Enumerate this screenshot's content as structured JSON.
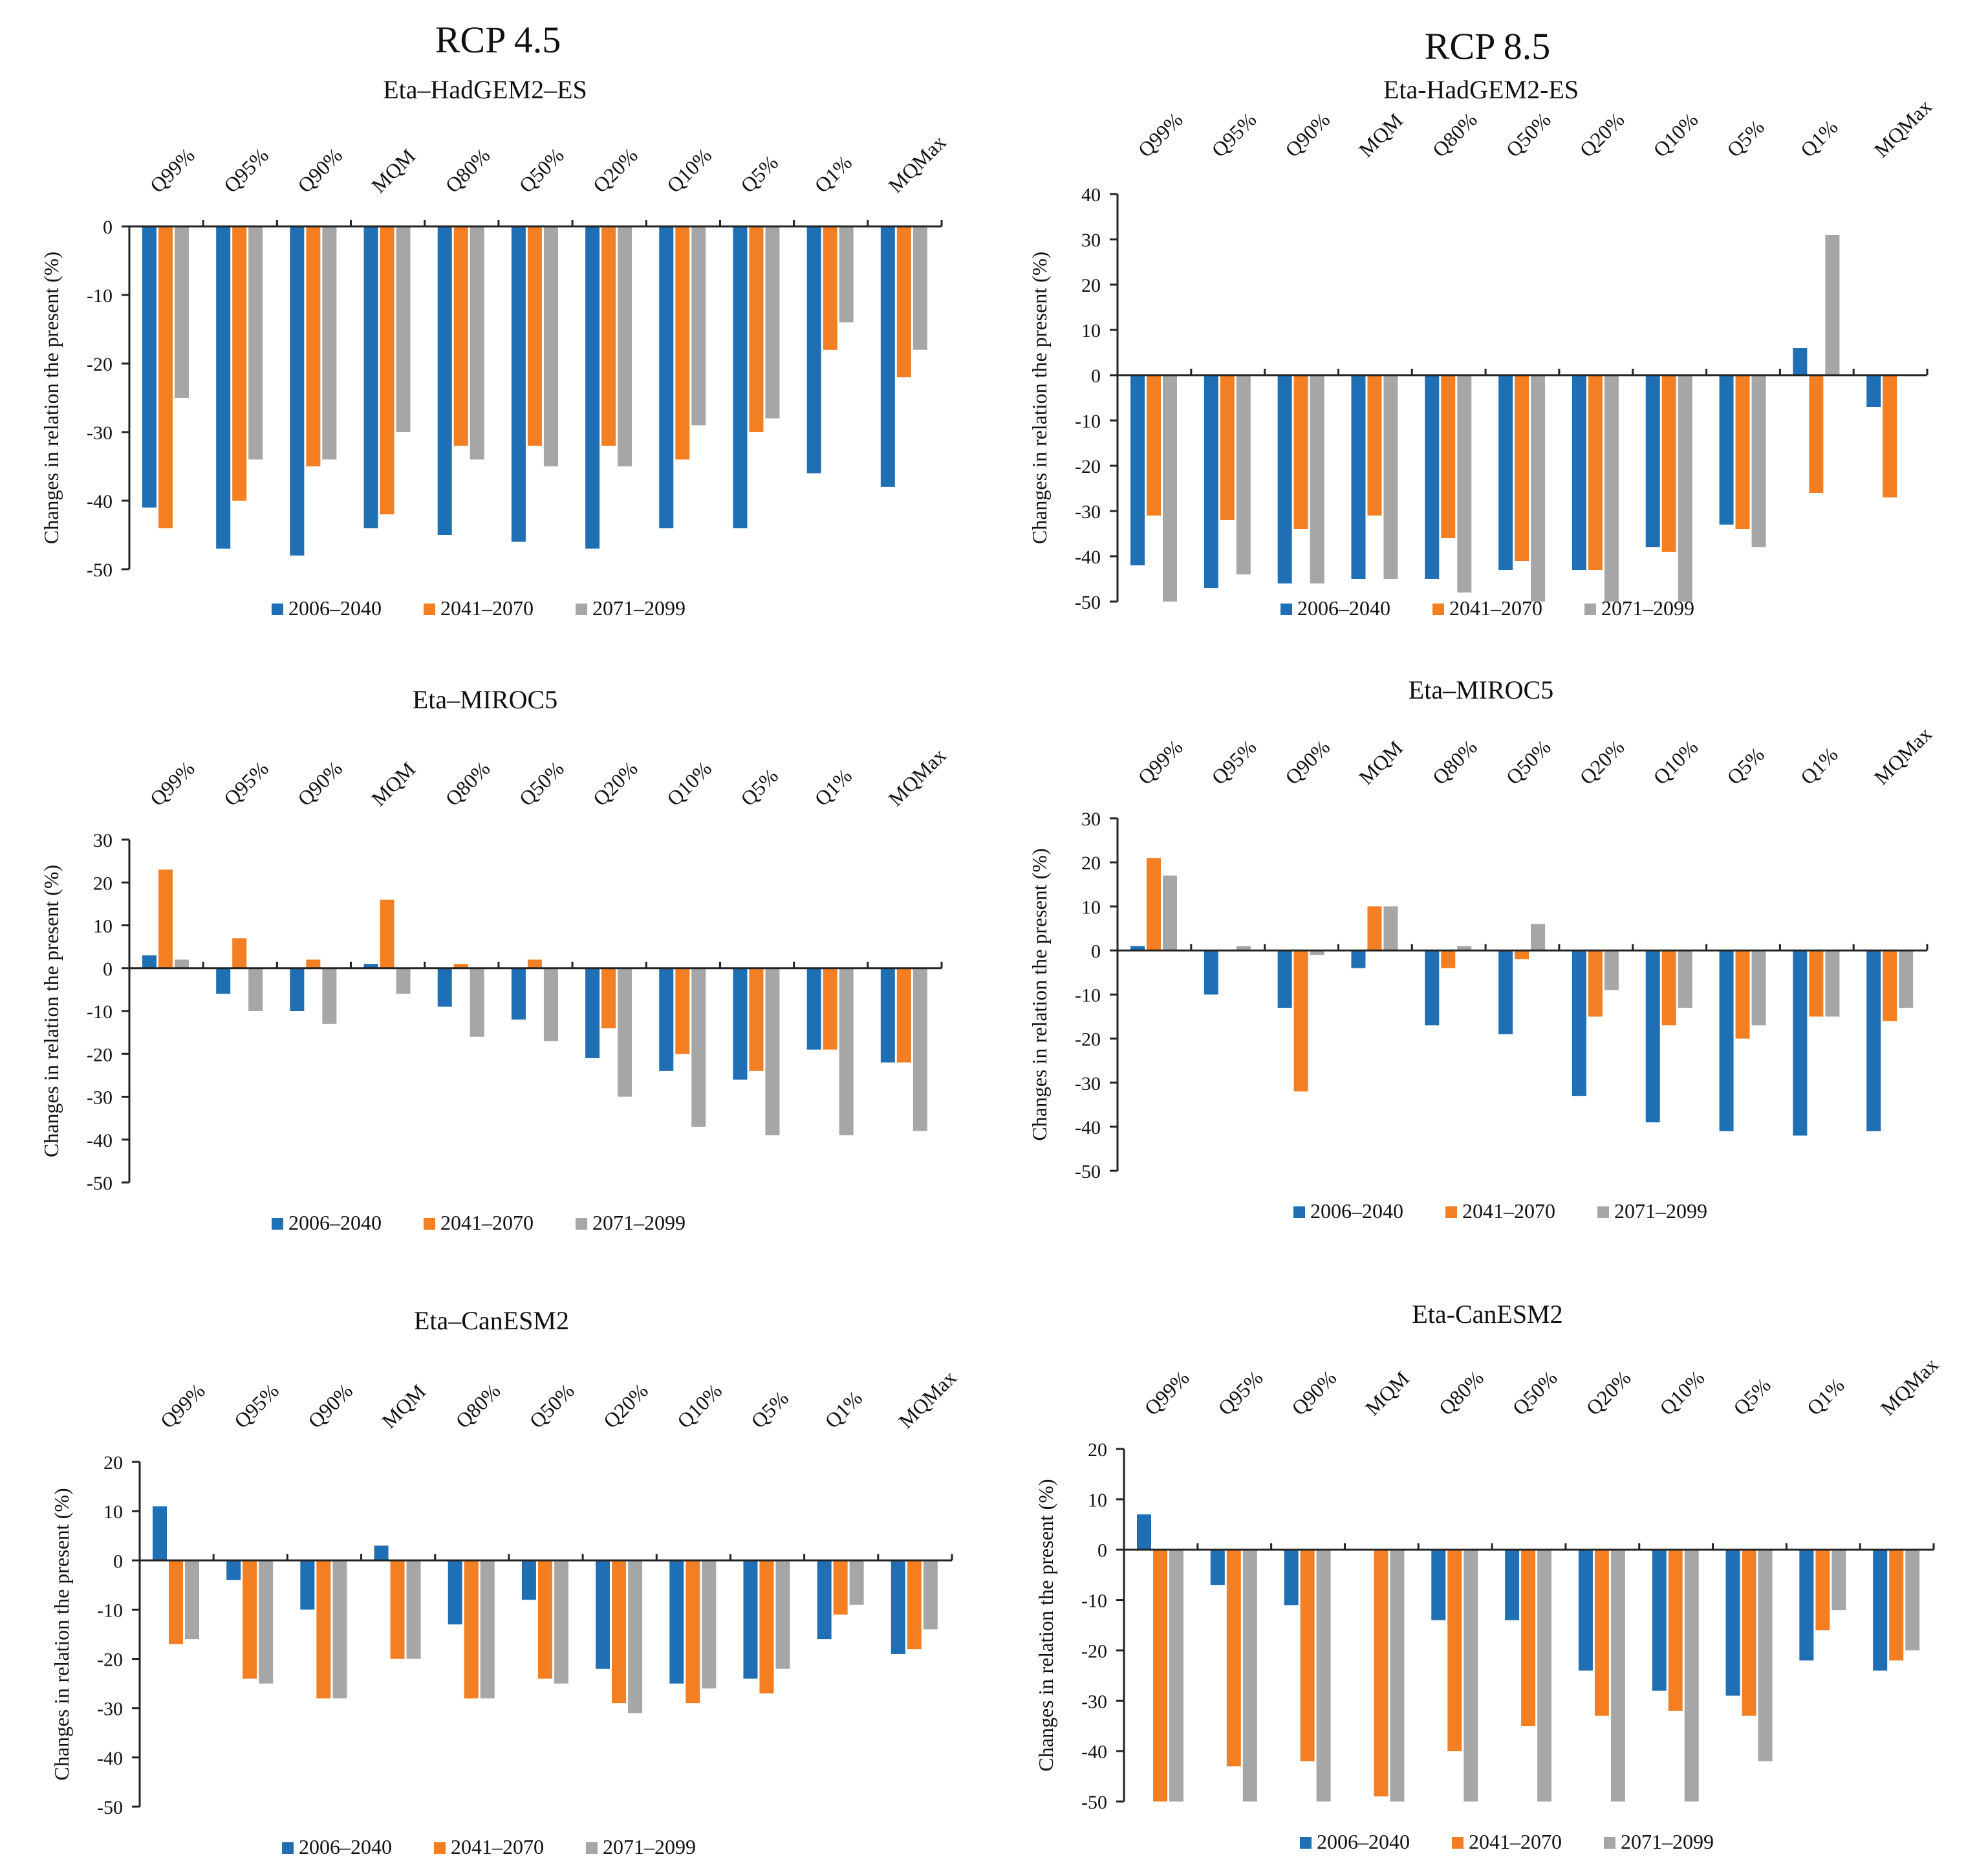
{
  "colors": {
    "s1": "#1F6FB4",
    "s2": "#F37F22",
    "s3": "#A6A6A6",
    "axis": "#222222"
  },
  "columns": {
    "left_title": "RCP 4.5",
    "right_title": "RCP 8.5"
  },
  "categories": [
    "Q99%",
    "Q95%",
    "Q90%",
    "MQM",
    "Q80%",
    "Q50%",
    "Q20%",
    "Q10%",
    "Q5%",
    "Q1%",
    "MQMax"
  ],
  "series_names": [
    "2006–2040",
    "2041–2070",
    "2071–2099"
  ],
  "ylabel": "Changes in relation the present (%)",
  "chart_data": [
    {
      "type": "bar",
      "column": "RCP 4.5",
      "title": "Eta–HadGEM2–ES",
      "ylabel": "Changes in relation the present (%)",
      "ylim": [
        -50,
        0
      ],
      "yticks": [
        0,
        -10,
        -20,
        -30,
        -40,
        -50
      ],
      "categories": [
        "Q99%",
        "Q95%",
        "Q90%",
        "MQM",
        "Q80%",
        "Q50%",
        "Q20%",
        "Q10%",
        "Q5%",
        "Q1%",
        "MQMax"
      ],
      "series": [
        {
          "name": "2006–2040",
          "values": [
            -41,
            -47,
            -48,
            -44,
            -45,
            -46,
            -47,
            -44,
            -44,
            -36,
            -38
          ]
        },
        {
          "name": "2041–2070",
          "values": [
            -44,
            -40,
            -35,
            -42,
            -32,
            -32,
            -32,
            -34,
            -30,
            -18,
            -22
          ]
        },
        {
          "name": "2071–2099",
          "values": [
            -25,
            -34,
            -34,
            -30,
            -34,
            -35,
            -35,
            -29,
            -28,
            -14,
            -18
          ]
        }
      ]
    },
    {
      "type": "bar",
      "column": "RCP 8.5",
      "title": "Eta-HadGEM2-ES",
      "ylabel": "Changes in relation the present (%)",
      "ylim": [
        -50,
        40
      ],
      "yticks": [
        40,
        30,
        20,
        10,
        0,
        -10,
        -20,
        -30,
        -40,
        -50
      ],
      "categories": [
        "Q99%",
        "Q95%",
        "Q90%",
        "MQM",
        "Q80%",
        "Q50%",
        "Q20%",
        "Q10%",
        "Q5%",
        "Q1%",
        "MQMax"
      ],
      "series": [
        {
          "name": "2006–2040",
          "values": [
            -42,
            -47,
            -46,
            -45,
            -45,
            -43,
            -43,
            -38,
            -33,
            6,
            -7
          ]
        },
        {
          "name": "2041–2070",
          "values": [
            -31,
            -32,
            -34,
            -31,
            -36,
            -41,
            -43,
            -39,
            -34,
            -26,
            -27
          ]
        },
        {
          "name": "2071–2099",
          "values": [
            -50,
            -44,
            -46,
            -45,
            -48,
            -50,
            -50,
            -50,
            -38,
            31,
            0
          ]
        }
      ]
    },
    {
      "type": "bar",
      "column": "RCP 4.5",
      "title": "Eta–MIROC5",
      "ylabel": "Changes in relation the present (%)",
      "ylim": [
        -50,
        30
      ],
      "yticks": [
        30,
        20,
        10,
        0,
        -10,
        -20,
        -30,
        -40,
        -50
      ],
      "categories": [
        "Q99%",
        "Q95%",
        "Q90%",
        "MQM",
        "Q80%",
        "Q50%",
        "Q20%",
        "Q10%",
        "Q5%",
        "Q1%",
        "MQMax"
      ],
      "series": [
        {
          "name": "2006–2040",
          "values": [
            3,
            -6,
            -10,
            1,
            -9,
            -12,
            -21,
            -24,
            -26,
            -19,
            -22
          ]
        },
        {
          "name": "2041–2070",
          "values": [
            23,
            7,
            2,
            16,
            1,
            2,
            -14,
            -20,
            -24,
            -19,
            -22
          ]
        },
        {
          "name": "2071–2099",
          "values": [
            2,
            -10,
            -13,
            -6,
            -16,
            -17,
            -30,
            -37,
            -39,
            -39,
            -38
          ]
        }
      ]
    },
    {
      "type": "bar",
      "column": "RCP 8.5",
      "title": "Eta–MIROC5",
      "ylabel": "Changes in relation the present (%)",
      "ylim": [
        -50,
        30
      ],
      "yticks": [
        30,
        20,
        10,
        0,
        -10,
        -20,
        -30,
        -40,
        -50
      ],
      "categories": [
        "Q99%",
        "Q95%",
        "Q90%",
        "MQM",
        "Q80%",
        "Q50%",
        "Q20%",
        "Q10%",
        "Q5%",
        "Q1%",
        "MQMax"
      ],
      "series": [
        {
          "name": "2006–2040",
          "values": [
            1,
            -10,
            -13,
            -4,
            -17,
            -19,
            -33,
            -39,
            -41,
            -42,
            -41
          ]
        },
        {
          "name": "2041–2070",
          "values": [
            21,
            0,
            -32,
            10,
            -4,
            -2,
            -15,
            -17,
            -20,
            -15,
            -16
          ]
        },
        {
          "name": "2071–2099",
          "values": [
            17,
            1,
            -1,
            10,
            1,
            6,
            -9,
            -13,
            -17,
            -15,
            -13
          ]
        }
      ]
    },
    {
      "type": "bar",
      "column": "RCP 4.5",
      "title": "Eta–CanESM2",
      "ylabel": "Changes in relation the present (%)",
      "ylim": [
        -50,
        20
      ],
      "yticks": [
        20,
        10,
        0,
        -10,
        -20,
        -30,
        -40,
        -50
      ],
      "categories": [
        "Q99%",
        "Q95%",
        "Q90%",
        "MQM",
        "Q80%",
        "Q50%",
        "Q20%",
        "Q10%",
        "Q5%",
        "Q1%",
        "MQMax"
      ],
      "series": [
        {
          "name": "2006–2040",
          "values": [
            11,
            -4,
            -10,
            3,
            -13,
            -8,
            -22,
            -25,
            -24,
            -16,
            -19
          ]
        },
        {
          "name": "2041–2070",
          "values": [
            -17,
            -24,
            -28,
            -20,
            -28,
            -24,
            -29,
            -29,
            -27,
            -11,
            -18
          ]
        },
        {
          "name": "2071–2099",
          "values": [
            -16,
            -25,
            -28,
            -20,
            -28,
            -25,
            -31,
            -26,
            -22,
            -9,
            -14
          ]
        }
      ]
    },
    {
      "type": "bar",
      "column": "RCP 8.5",
      "title": "Eta-CanESM2",
      "ylabel": "Changes in relation the present (%)",
      "ylim": [
        -50,
        20
      ],
      "yticks": [
        20,
        10,
        0,
        -10,
        -20,
        -30,
        -40,
        -50
      ],
      "categories": [
        "Q99%",
        "Q95%",
        "Q90%",
        "MQM",
        "Q80%",
        "Q50%",
        "Q20%",
        "Q10%",
        "Q5%",
        "Q1%",
        "MQMax"
      ],
      "series": [
        {
          "name": "2006–2040",
          "values": [
            7,
            -7,
            -11,
            0,
            -14,
            -14,
            -24,
            -28,
            -29,
            -22,
            -24
          ]
        },
        {
          "name": "2041–2070",
          "values": [
            -50,
            -43,
            -42,
            -49,
            -40,
            -35,
            -33,
            -32,
            -33,
            -16,
            -22
          ]
        },
        {
          "name": "2071–2099",
          "values": [
            -50,
            -50,
            -50,
            -50,
            -50,
            -50,
            -50,
            -50,
            -42,
            -12,
            -20
          ]
        }
      ]
    }
  ]
}
